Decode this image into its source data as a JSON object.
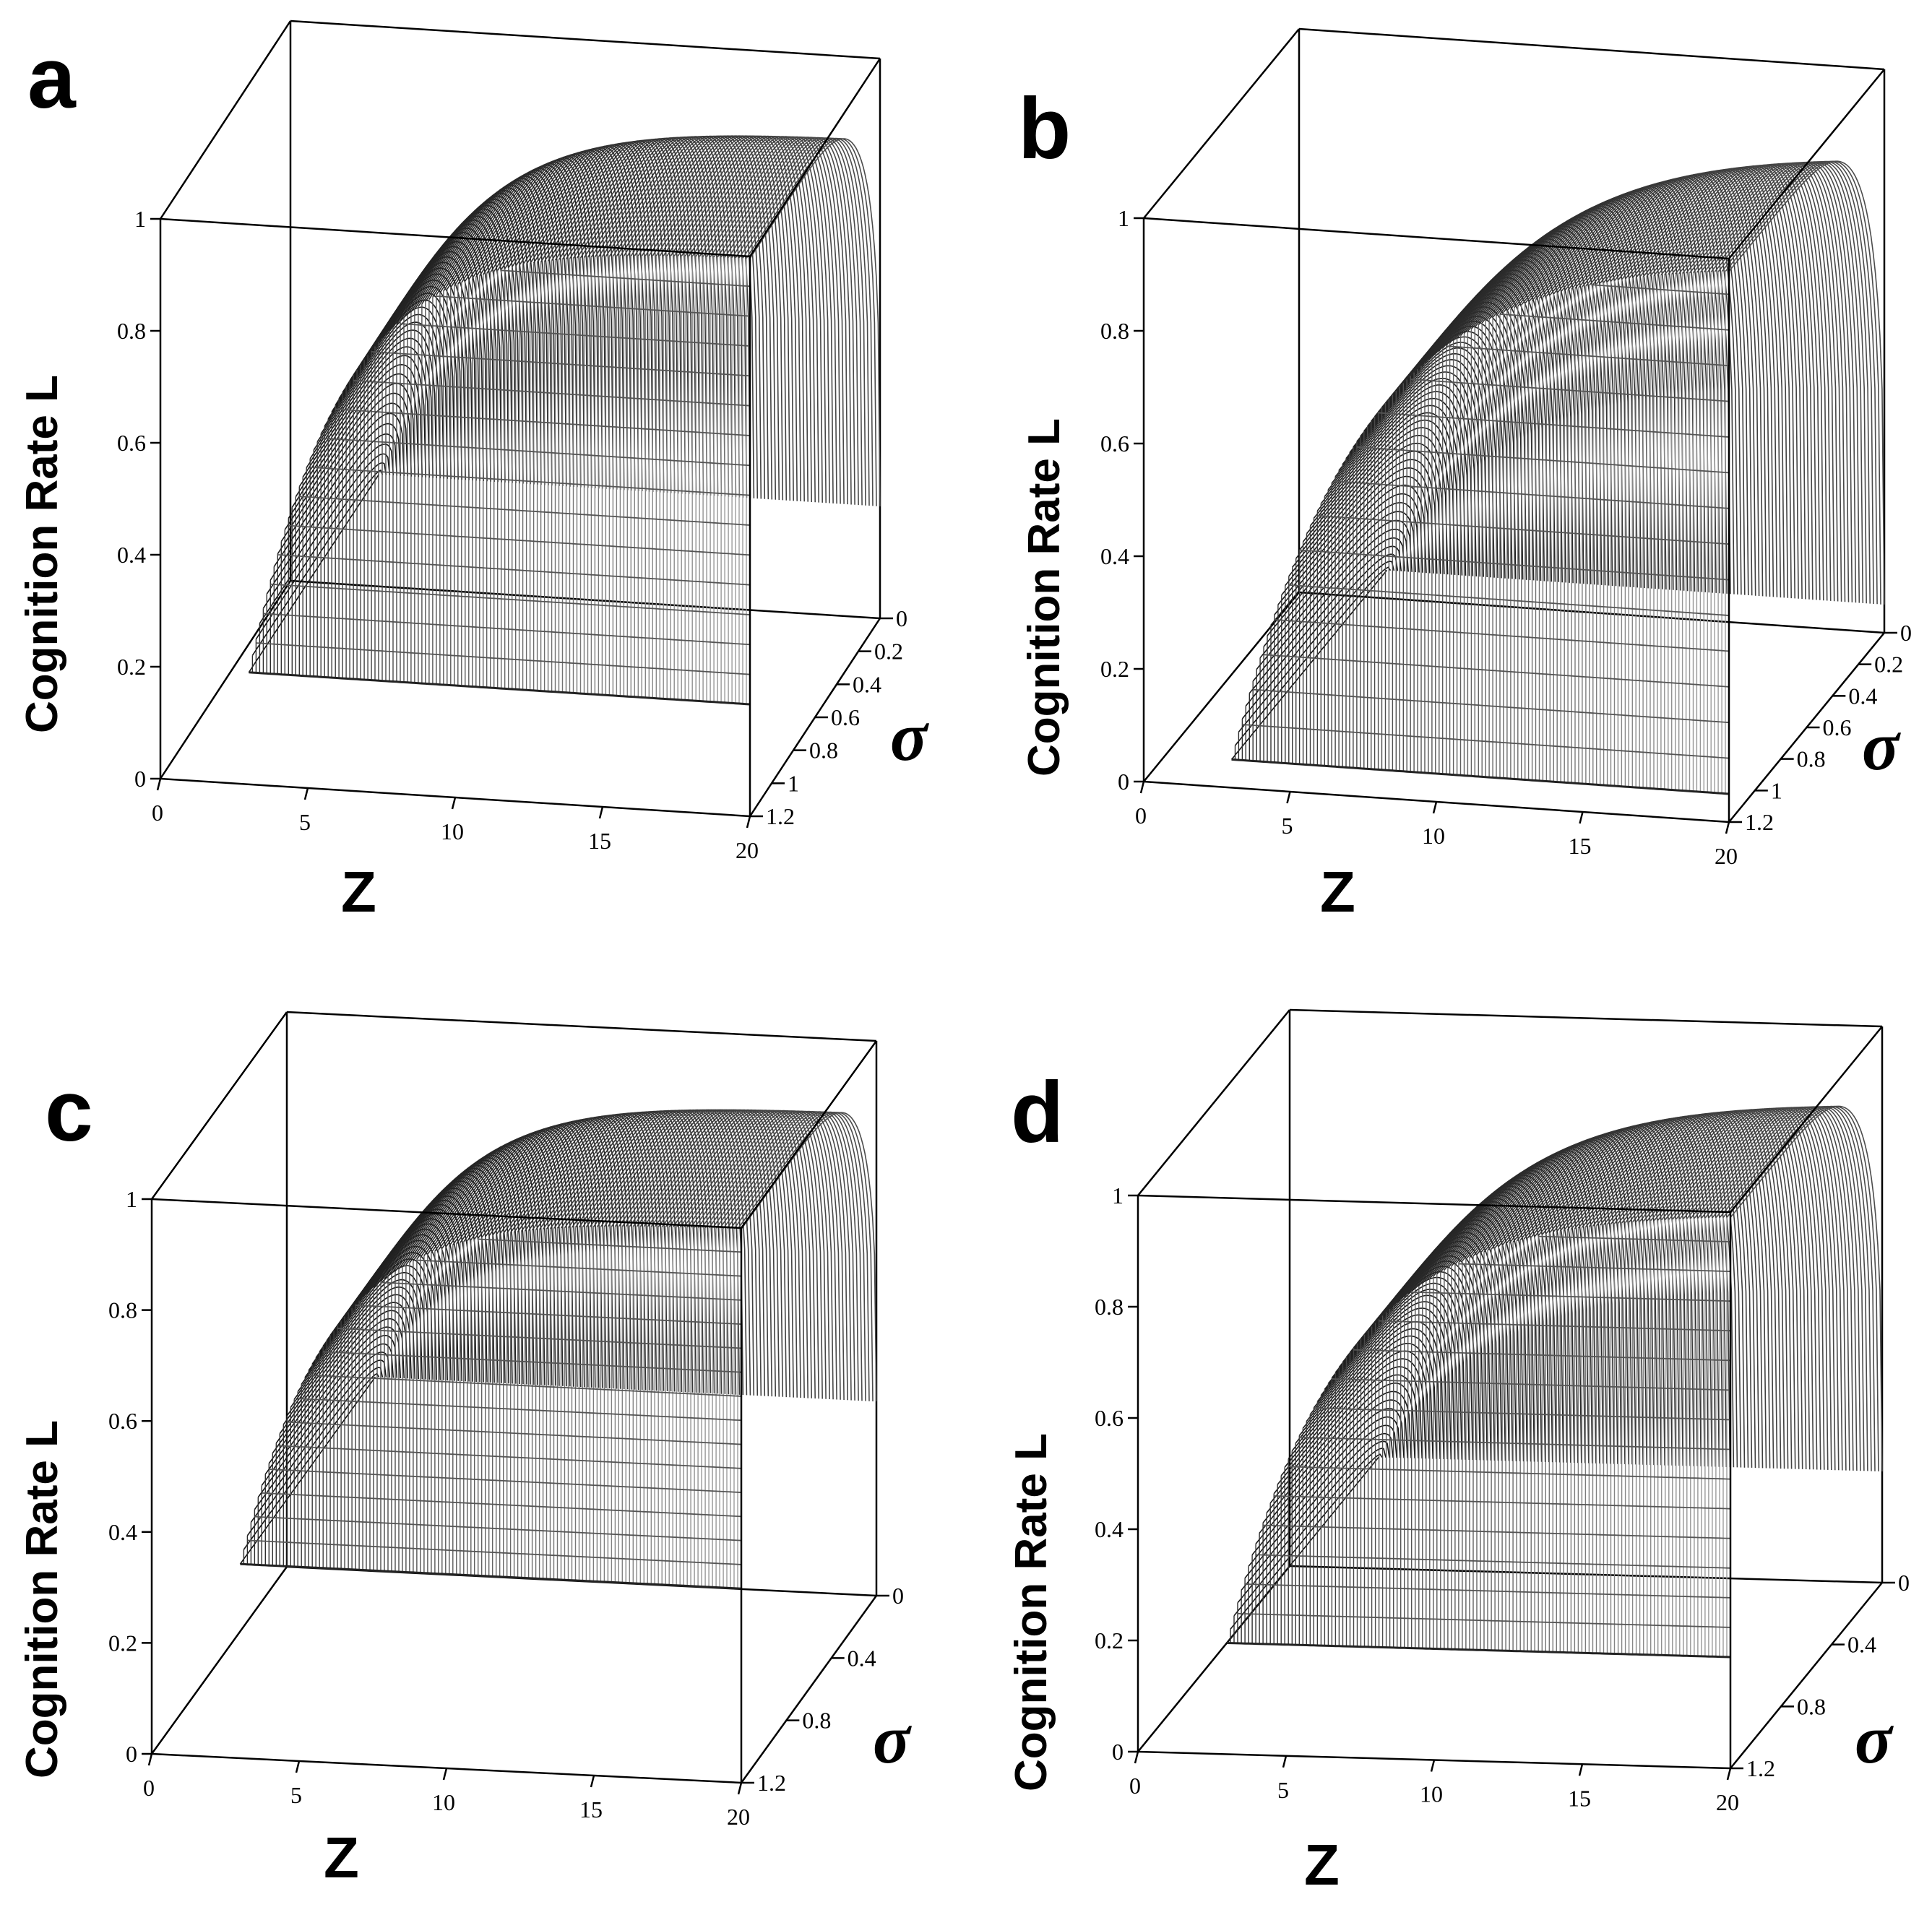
{
  "chart_data": [
    {
      "type": "surface3d",
      "panel_label": "a",
      "zlabel": "Cognition Rate L",
      "xlabel": "Z",
      "ylabel": "σ",
      "x_ticks": [
        "0",
        "5",
        "10",
        "15",
        "20"
      ],
      "y_ticks": [
        "0",
        "0.2",
        "0.4",
        "0.6",
        "0.8",
        "1",
        "1.2"
      ],
      "z_ticks": [
        "0",
        "0.2",
        "0.4",
        "0.6",
        "0.8",
        "1"
      ],
      "xlim": [
        0,
        20
      ],
      "ylim": [
        0,
        1.2
      ],
      "zlim": [
        0,
        1
      ],
      "surface": {
        "z_min": 3,
        "z_max": 20,
        "sigma_min": 0,
        "sigma_max": 1.2,
        "floor_level": 0.2,
        "rate": 0.32
      }
    },
    {
      "type": "surface3d",
      "panel_label": "b",
      "zlabel": "Cognition Rate L",
      "xlabel": "Z",
      "ylabel": "σ",
      "x_ticks": [
        "0",
        "5",
        "10",
        "15",
        "20"
      ],
      "y_ticks": [
        "0",
        "0.2",
        "0.4",
        "0.6",
        "0.8",
        "1",
        "1.2"
      ],
      "z_ticks": [
        "0",
        "0.2",
        "0.4",
        "0.6",
        "0.8",
        "1"
      ],
      "xlim": [
        0,
        20
      ],
      "ylim": [
        0,
        1.2
      ],
      "zlim": [
        0,
        1
      ],
      "surface": {
        "z_min": 3,
        "z_max": 20,
        "sigma_min": 0,
        "sigma_max": 1.2,
        "floor_level": 0.05,
        "rate": 0.22
      }
    },
    {
      "type": "surface3d",
      "panel_label": "c",
      "zlabel": "Cognition Rate L",
      "xlabel": "Z",
      "ylabel": "σ",
      "x_ticks": [
        "0",
        "5",
        "10",
        "15",
        "20"
      ],
      "y_ticks": [
        "0",
        "0.4",
        "0.8",
        "1.2"
      ],
      "z_ticks": [
        "0",
        "0.2",
        "0.4",
        "0.6",
        "0.8",
        "1"
      ],
      "xlim": [
        0,
        20
      ],
      "ylim": [
        0,
        1.2
      ],
      "zlim": [
        0,
        1
      ],
      "surface": {
        "z_min": 3,
        "z_max": 20,
        "sigma_min": 0,
        "sigma_max": 1.2,
        "floor_level": 0.35,
        "rate": 0.34
      }
    },
    {
      "type": "surface3d",
      "panel_label": "d",
      "zlabel": "Cognition Rate L",
      "xlabel": "Z",
      "ylabel": "σ",
      "x_ticks": [
        "0",
        "5",
        "10",
        "15",
        "20"
      ],
      "y_ticks": [
        "0",
        "0.4",
        "0.8",
        "1.2"
      ],
      "z_ticks": [
        "0",
        "0.2",
        "0.4",
        "0.6",
        "0.8",
        "1"
      ],
      "xlim": [
        0,
        20
      ],
      "ylim": [
        0,
        1.2
      ],
      "zlim": [
        0,
        1
      ],
      "surface": {
        "z_min": 3,
        "z_max": 20,
        "sigma_min": 0,
        "sigma_max": 1.2,
        "floor_level": 0.2,
        "rate": 0.26
      }
    }
  ]
}
